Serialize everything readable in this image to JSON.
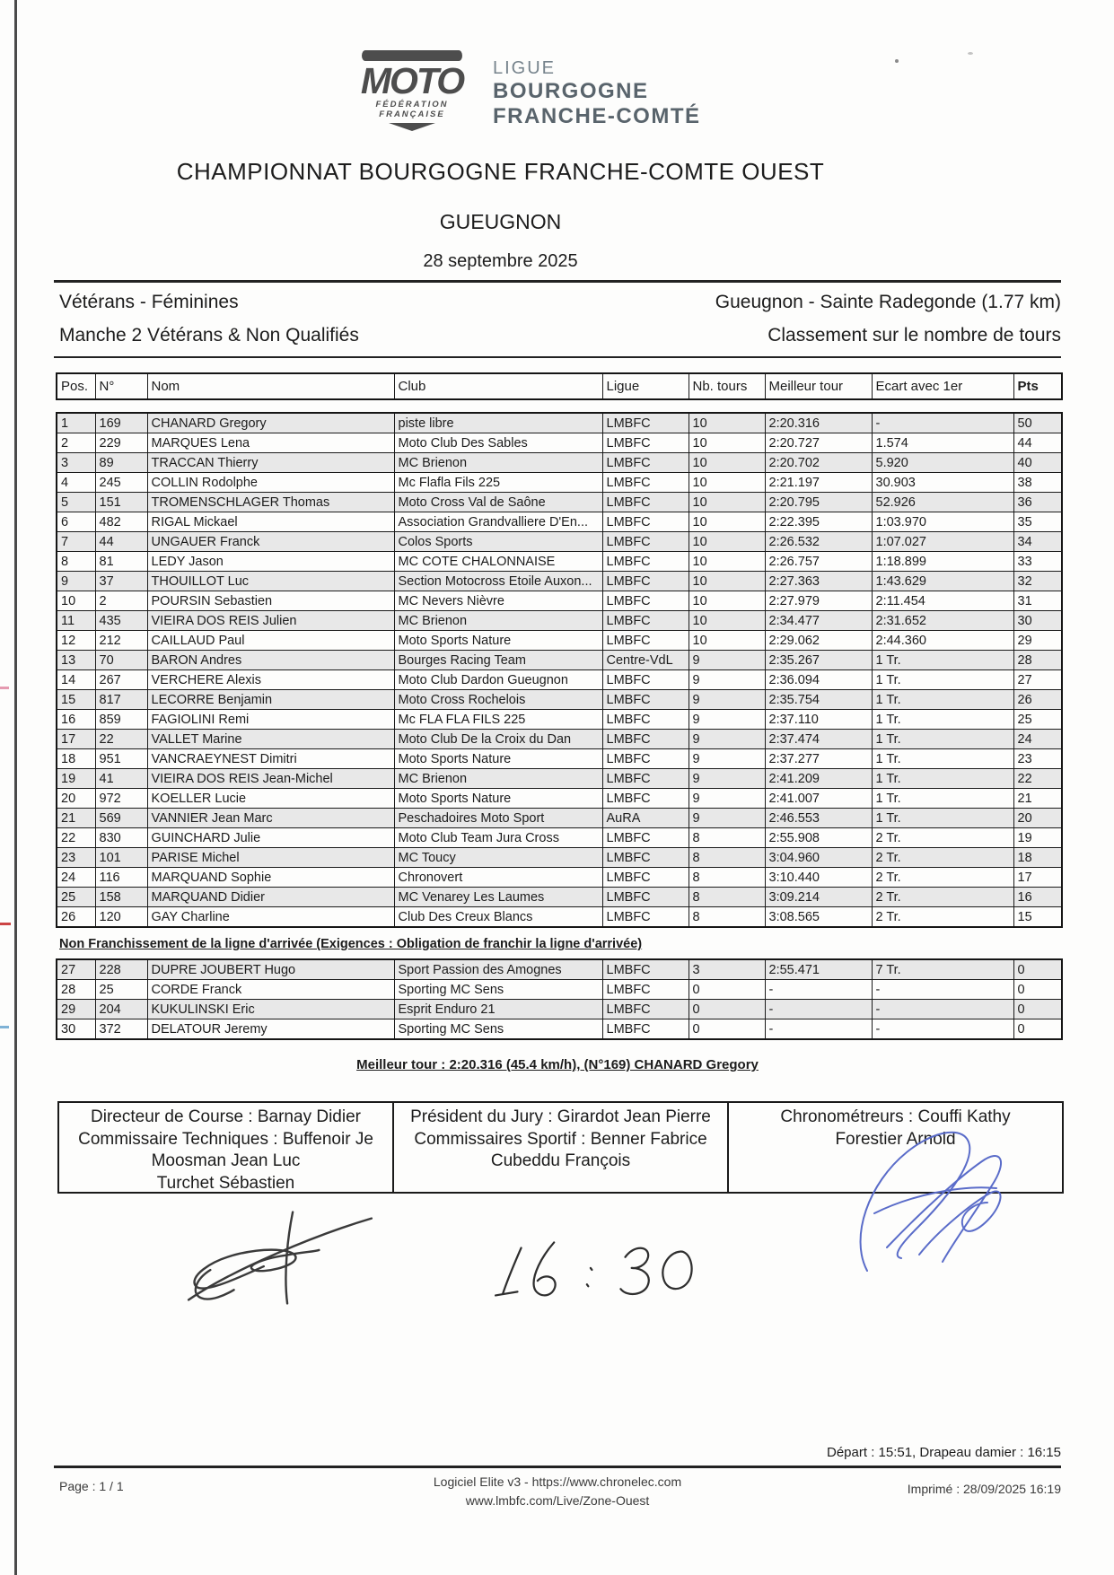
{
  "logo": {
    "ffm_name": "MOTO",
    "ffm_sub1": "FÉDÉRATION",
    "ffm_sub2": "FRANÇAISE",
    "ligue_line1": "LIGUE",
    "ligue_line2": "BOURGOGNE",
    "ligue_line3": "FRANCHE-COMTÉ"
  },
  "header": {
    "title": "CHAMPIONNAT BOURGOGNE FRANCHE-COMTE OUEST",
    "venue": "GUEUGNON",
    "date": "28 septembre 2025"
  },
  "info": {
    "category": "Vétérans - Féminines",
    "heat": "Manche 2 Vétérans & Non Qualifiés",
    "track": "Gueugnon - Sainte Radegonde (1.77 km)",
    "ranking_note": "Classement sur le nombre de tours"
  },
  "table": {
    "headers": [
      "Pos.",
      "N°",
      "Nom",
      "Club",
      "Ligue",
      "Nb. tours",
      "Meilleur tour",
      "Ecart avec 1er",
      "Pts"
    ],
    "rows": [
      [
        "1",
        "169",
        "CHANARD Gregory",
        "piste libre",
        "LMBFC",
        "10",
        "2:20.316",
        "-",
        "50"
      ],
      [
        "2",
        "229",
        "MARQUES Lena",
        "Moto Club Des Sables",
        "LMBFC",
        "10",
        "2:20.727",
        "1.574",
        "44"
      ],
      [
        "3",
        "89",
        "TRACCAN Thierry",
        "MC Brienon",
        "LMBFC",
        "10",
        "2:20.702",
        "5.920",
        "40"
      ],
      [
        "4",
        "245",
        "COLLIN Rodolphe",
        "Mc Flafla Fils 225",
        "LMBFC",
        "10",
        "2:21.197",
        "30.903",
        "38"
      ],
      [
        "5",
        "151",
        "TROMENSCHLAGER Thomas",
        "Moto Cross Val de Saône",
        "LMBFC",
        "10",
        "2:20.795",
        "52.926",
        "36"
      ],
      [
        "6",
        "482",
        "RIGAL Mickael",
        "Association Grandvalliere D'En...",
        "LMBFC",
        "10",
        "2:22.395",
        "1:03.970",
        "35"
      ],
      [
        "7",
        "44",
        "UNGAUER Franck",
        "Colos Sports",
        "LMBFC",
        "10",
        "2:26.532",
        "1:07.027",
        "34"
      ],
      [
        "8",
        "81",
        "LEDY Jason",
        "MC COTE CHALONNAISE",
        "LMBFC",
        "10",
        "2:26.757",
        "1:18.899",
        "33"
      ],
      [
        "9",
        "37",
        "THOUILLOT Luc",
        "Section Motocross Etoile Auxon...",
        "LMBFC",
        "10",
        "2:27.363",
        "1:43.629",
        "32"
      ],
      [
        "10",
        "2",
        "POURSIN Sebastien",
        "MC Nevers Nièvre",
        "LMBFC",
        "10",
        "2:27.979",
        "2:11.454",
        "31"
      ],
      [
        "11",
        "435",
        "VIEIRA DOS REIS Julien",
        "MC Brienon",
        "LMBFC",
        "10",
        "2:34.477",
        "2:31.652",
        "30"
      ],
      [
        "12",
        "212",
        "CAILLAUD Paul",
        "Moto Sports Nature",
        "LMBFC",
        "10",
        "2:29.062",
        "2:44.360",
        "29"
      ],
      [
        "13",
        "70",
        "BARON Andres",
        "Bourges Racing Team",
        "Centre-VdL",
        "9",
        "2:35.267",
        "1 Tr.",
        "28"
      ],
      [
        "14",
        "267",
        "VERCHERE Alexis",
        "Moto Club Dardon Gueugnon",
        "LMBFC",
        "9",
        "2:36.094",
        "1 Tr.",
        "27"
      ],
      [
        "15",
        "817",
        "LECORRE Benjamin",
        "Moto Cross Rochelois",
        "LMBFC",
        "9",
        "2:35.754",
        "1 Tr.",
        "26"
      ],
      [
        "16",
        "859",
        "FAGIOLINI Remi",
        "Mc FLA FLA FILS 225",
        "LMBFC",
        "9",
        "2:37.110",
        "1 Tr.",
        "25"
      ],
      [
        "17",
        "22",
        "VALLET Marine",
        "Moto Club De la Croix du Dan",
        "LMBFC",
        "9",
        "2:37.474",
        "1 Tr.",
        "24"
      ],
      [
        "18",
        "951",
        "VANCRAEYNEST Dimitri",
        "Moto Sports Nature",
        "LMBFC",
        "9",
        "2:37.277",
        "1 Tr.",
        "23"
      ],
      [
        "19",
        "41",
        "VIEIRA DOS REIS Jean-Michel",
        "MC Brienon",
        "LMBFC",
        "9",
        "2:41.209",
        "1 Tr.",
        "22"
      ],
      [
        "20",
        "972",
        "KOELLER Lucie",
        "Moto Sports Nature",
        "LMBFC",
        "9",
        "2:41.007",
        "1 Tr.",
        "21"
      ],
      [
        "21",
        "569",
        "VANNIER Jean Marc",
        "Peschadoires Moto Sport",
        "AuRA",
        "9",
        "2:46.553",
        "1 Tr.",
        "20"
      ],
      [
        "22",
        "830",
        "GUINCHARD Julie",
        "Moto Club Team Jura Cross",
        "LMBFC",
        "8",
        "2:55.908",
        "2 Tr.",
        "19"
      ],
      [
        "23",
        "101",
        "PARISE Michel",
        "MC Toucy",
        "LMBFC",
        "8",
        "3:04.960",
        "2 Tr.",
        "18"
      ],
      [
        "24",
        "116",
        "MARQUAND Sophie",
        "Chronovert",
        "LMBFC",
        "8",
        "3:10.440",
        "2 Tr.",
        "17"
      ],
      [
        "25",
        "158",
        "MARQUAND Didier",
        "MC Venarey Les Laumes",
        "LMBFC",
        "8",
        "3:09.214",
        "2 Tr.",
        "16"
      ],
      [
        "26",
        "120",
        "GAY Charline",
        "Club Des Creux Blancs",
        "LMBFC",
        "8",
        "3:08.565",
        "2 Tr.",
        "15"
      ]
    ]
  },
  "dnf_section": {
    "title": "Non Franchissement de la ligne d'arrivée (Exigences : Obligation de franchir la ligne d'arrivée)",
    "rows": [
      [
        "27",
        "228",
        "DUPRE JOUBERT Hugo",
        "Sport Passion des Amognes",
        "LMBFC",
        "3",
        "2:55.471",
        "7 Tr.",
        "0"
      ],
      [
        "28",
        "25",
        "CORDE Franck",
        "Sporting MC Sens",
        "LMBFC",
        "0",
        "-",
        "-",
        "0"
      ],
      [
        "29",
        "204",
        "KUKULINSKI Eric",
        "Esprit Enduro 21",
        "LMBFC",
        "0",
        "-",
        "-",
        "0"
      ],
      [
        "30",
        "372",
        "DELATOUR Jeremy",
        "Sporting MC Sens",
        "LMBFC",
        "0",
        "-",
        "-",
        "0"
      ]
    ]
  },
  "best_lap": "Meilleur tour : 2:20.316 (45.4 km/h), (N°169) CHANARD Gregory",
  "officials": {
    "col1": [
      "Directeur de Course : Barnay Didier",
      "Commissaire Techniques : Buffenoir Je",
      "Moosman Jean Luc",
      "Turchet Sébastien"
    ],
    "col2": [
      "Président du Jury : Girardot Jean Pierre",
      "Commissaires Sportif : Benner Fabrice",
      "Cubeddu François"
    ],
    "col3": [
      "Chronométreurs : Couffi Kathy",
      "Forestier Arnold"
    ]
  },
  "signatures": {
    "handwritten_time": "16:30"
  },
  "times_note": "Départ : 15:51, Drapeau damier : 16:15",
  "footer": {
    "page": "Page : 1 / 1",
    "software": "Logiciel Elite v3 - https://www.chronelec.com",
    "live": "www.lmbfc.com/Live/Zone-Ouest",
    "printed": "Imprimé : 28/09/2025 16:19"
  }
}
